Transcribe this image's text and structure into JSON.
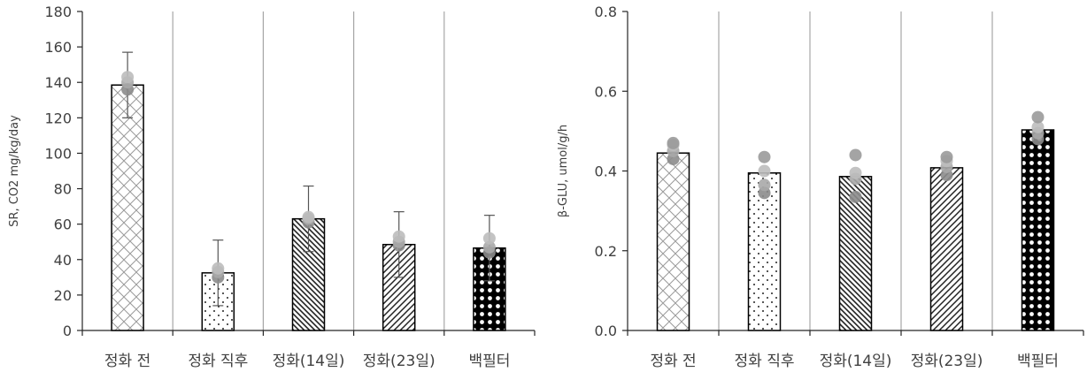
{
  "chart_data": [
    {
      "type": "bar",
      "title": "",
      "xlabel": "",
      "ylabel": "SR, CO2 mg/kg/day",
      "ylim": [
        0,
        180
      ],
      "yticks": [
        0,
        20,
        40,
        60,
        80,
        100,
        120,
        140,
        160,
        180
      ],
      "grid": "vertical separators between categories",
      "categories": [
        "정화 전",
        "정화 직후",
        "정화(14일)",
        "정화(23일)",
        "백필터"
      ],
      "values": [
        138.5,
        32.5,
        63,
        48.5,
        46.5
      ],
      "error_bars": [
        18.5,
        18.5,
        18.5,
        18.5,
        18.5
      ],
      "points": [
        [
          136,
          140,
          143
        ],
        [
          30,
          33,
          35
        ],
        [
          61,
          63,
          64
        ],
        [
          48,
          50,
          53
        ],
        [
          44,
          47,
          52
        ]
      ],
      "patterns": [
        "crosshatch",
        "dots",
        "diagonal-back-dense",
        "diagonal-forward",
        "black-circles"
      ]
    },
    {
      "type": "bar",
      "title": "",
      "xlabel": "",
      "ylabel": "β-GLU, umol/g/h",
      "ylim": [
        0.0,
        0.8
      ],
      "yticks": [
        "0.0",
        "0.2",
        "0.4",
        "0.6",
        "0.8"
      ],
      "grid": "vertical separators between categories",
      "categories": [
        "정화 전",
        "정화 직후",
        "정화(14일)",
        "정화(23일)",
        "백필터"
      ],
      "values": [
        0.445,
        0.395,
        0.386,
        0.408,
        0.503
      ],
      "points": [
        [
          0.43,
          0.45,
          0.465,
          0.47
        ],
        [
          0.345,
          0.365,
          0.4,
          0.435
        ],
        [
          0.335,
          0.38,
          0.395,
          0.44
        ],
        [
          0.39,
          0.41,
          0.425,
          0.435
        ],
        [
          0.48,
          0.495,
          0.51,
          0.535
        ]
      ],
      "patterns": [
        "crosshatch",
        "dots",
        "diagonal-back-dense",
        "diagonal-forward",
        "black-circles"
      ]
    }
  ]
}
